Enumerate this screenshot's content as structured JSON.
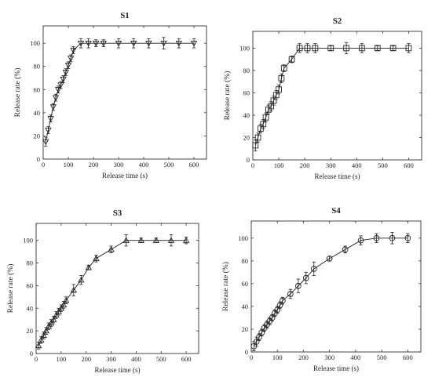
{
  "chart_data": [
    {
      "type": "scatter",
      "title": "S1",
      "xlabel": "Release time (s)",
      "ylabel": "Release rate (%)",
      "xlim": [
        0,
        650
      ],
      "ylim": [
        0,
        115
      ],
      "xticks": [
        0,
        100,
        200,
        300,
        400,
        500,
        600
      ],
      "yticks": [
        0,
        20,
        40,
        60,
        80,
        100
      ],
      "marker": "triangle-down",
      "grid": false,
      "series": [
        {
          "x": [
            10,
            20,
            30,
            40,
            50,
            60,
            70,
            80,
            90,
            100,
            110,
            120,
            150,
            180,
            210,
            240,
            300,
            360,
            420,
            480,
            540,
            600
          ],
          "y": [
            15,
            25,
            35,
            45,
            53,
            60,
            64,
            69,
            75,
            81,
            87,
            94,
            100,
            100,
            100,
            100,
            100,
            100,
            100,
            100,
            100,
            100
          ],
          "err": [
            4,
            3,
            3,
            3,
            3,
            3,
            3,
            3,
            3,
            3,
            3,
            3,
            4,
            4,
            3,
            3,
            4,
            4,
            4,
            5,
            4,
            4
          ]
        }
      ]
    },
    {
      "type": "scatter",
      "title": "S2",
      "xlabel": "Release time (s)",
      "ylabel": "Release rate (%)",
      "xlim": [
        0,
        650
      ],
      "ylim": [
        0,
        115
      ],
      "xticks": [
        0,
        100,
        200,
        300,
        400,
        500,
        600
      ],
      "yticks": [
        0,
        20,
        40,
        60,
        80,
        100
      ],
      "marker": "square",
      "grid": false,
      "series": [
        {
          "x": [
            10,
            20,
            30,
            40,
            50,
            60,
            70,
            80,
            90,
            100,
            110,
            120,
            150,
            180,
            210,
            240,
            300,
            360,
            420,
            480,
            540,
            600
          ],
          "y": [
            13,
            20,
            28,
            32,
            38,
            45,
            48,
            53,
            58,
            63,
            73,
            82,
            90,
            100,
            100,
            100,
            100,
            100,
            100,
            100,
            100,
            100
          ],
          "err": [
            5,
            4,
            4,
            4,
            4,
            4,
            4,
            4,
            4,
            4,
            4,
            3,
            3,
            4,
            4,
            4,
            2,
            5,
            4,
            2,
            2,
            4
          ]
        }
      ]
    },
    {
      "type": "scatter",
      "title": "S3",
      "xlabel": "Release time (s)",
      "ylabel": "Release rate (%)",
      "xlim": [
        0,
        650
      ],
      "ylim": [
        0,
        115
      ],
      "xticks": [
        0,
        100,
        200,
        300,
        400,
        500,
        600
      ],
      "yticks": [
        0,
        20,
        40,
        60,
        80,
        100
      ],
      "marker": "triangle-up",
      "grid": false,
      "series": [
        {
          "x": [
            10,
            20,
            30,
            40,
            50,
            60,
            70,
            80,
            90,
            100,
            110,
            120,
            150,
            180,
            210,
            240,
            300,
            360,
            420,
            480,
            540,
            600
          ],
          "y": [
            7,
            12,
            16,
            20,
            24,
            27,
            30,
            34,
            37,
            40,
            43,
            47,
            56,
            65,
            76,
            84,
            92,
            100,
            100,
            100,
            100,
            100
          ],
          "err": [
            3,
            3,
            3,
            3,
            3,
            3,
            3,
            3,
            3,
            3,
            3,
            3,
            5,
            4,
            2,
            3,
            3,
            5,
            2,
            2,
            5,
            3
          ]
        }
      ]
    },
    {
      "type": "scatter",
      "title": "S4",
      "xlabel": "Release time (s)",
      "ylabel": "Release rate (%)",
      "xlim": [
        0,
        650
      ],
      "ylim": [
        0,
        115
      ],
      "xticks": [
        0,
        100,
        200,
        300,
        400,
        500,
        600
      ],
      "yticks": [
        0,
        20,
        40,
        60,
        80,
        100
      ],
      "marker": "circle",
      "grid": false,
      "series": [
        {
          "x": [
            10,
            20,
            30,
            40,
            50,
            60,
            70,
            80,
            90,
            100,
            110,
            120,
            150,
            180,
            210,
            240,
            300,
            360,
            420,
            480,
            540,
            600
          ],
          "y": [
            5,
            9,
            13,
            17,
            21,
            24,
            27,
            30,
            34,
            37,
            41,
            45,
            51,
            58,
            65,
            73,
            82,
            90,
            98,
            100,
            100,
            100
          ],
          "err": [
            4,
            4,
            3,
            3,
            3,
            3,
            3,
            3,
            3,
            3,
            3,
            3,
            4,
            6,
            5,
            6,
            2,
            3,
            4,
            4,
            5,
            4
          ]
        }
      ]
    }
  ]
}
